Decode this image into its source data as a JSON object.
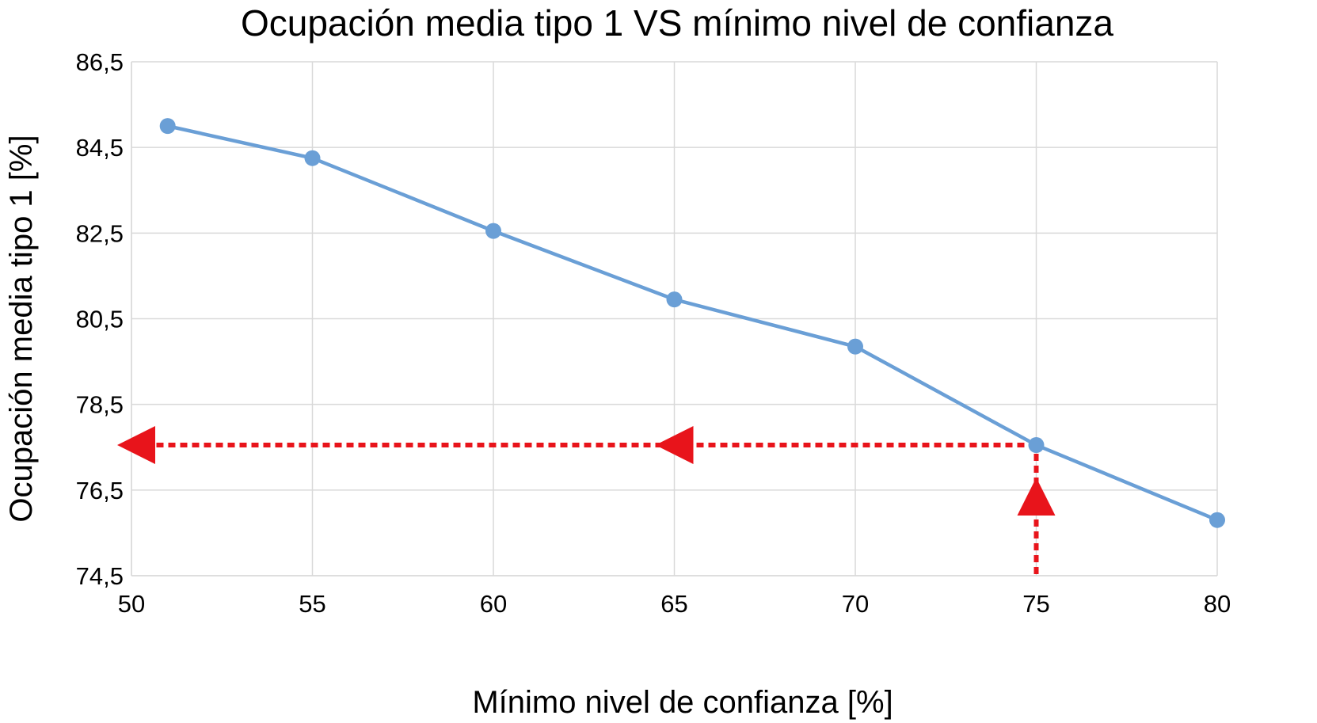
{
  "chart_data": {
    "type": "line",
    "title": "Ocupación media tipo 1 VS mínimo nivel de confianza",
    "xlabel": "Mínimo nivel de confianza [%]",
    "ylabel": "Ocupación media tipo 1 [%]",
    "xlim": [
      50,
      80
    ],
    "ylim": [
      74.5,
      86.5
    ],
    "x_ticks": [
      50,
      55,
      60,
      65,
      70,
      75,
      80
    ],
    "y_ticks": [
      74.5,
      76.5,
      78.5,
      80.5,
      82.5,
      84.5,
      86.5
    ],
    "x_tick_labels": [
      "50",
      "55",
      "60",
      "65",
      "70",
      "75",
      "80"
    ],
    "y_tick_labels": [
      "74,5",
      "76,5",
      "78,5",
      "80,5",
      "82,5",
      "84,5",
      "86,5"
    ],
    "grid": true,
    "series": [
      {
        "x": [
          51,
          55,
          60,
          65,
          70,
          75,
          80
        ],
        "y": [
          85.0,
          84.25,
          82.55,
          80.95,
          79.85,
          77.55,
          75.8
        ],
        "color": "#6a9fd6"
      }
    ],
    "annotations": [
      {
        "type": "dashed-arrow-path",
        "color": "#e8141b",
        "description": "vertical from x-axis up to point at x=75, then horizontal to y-axis",
        "corner": [
          75,
          77.55
        ]
      }
    ]
  }
}
